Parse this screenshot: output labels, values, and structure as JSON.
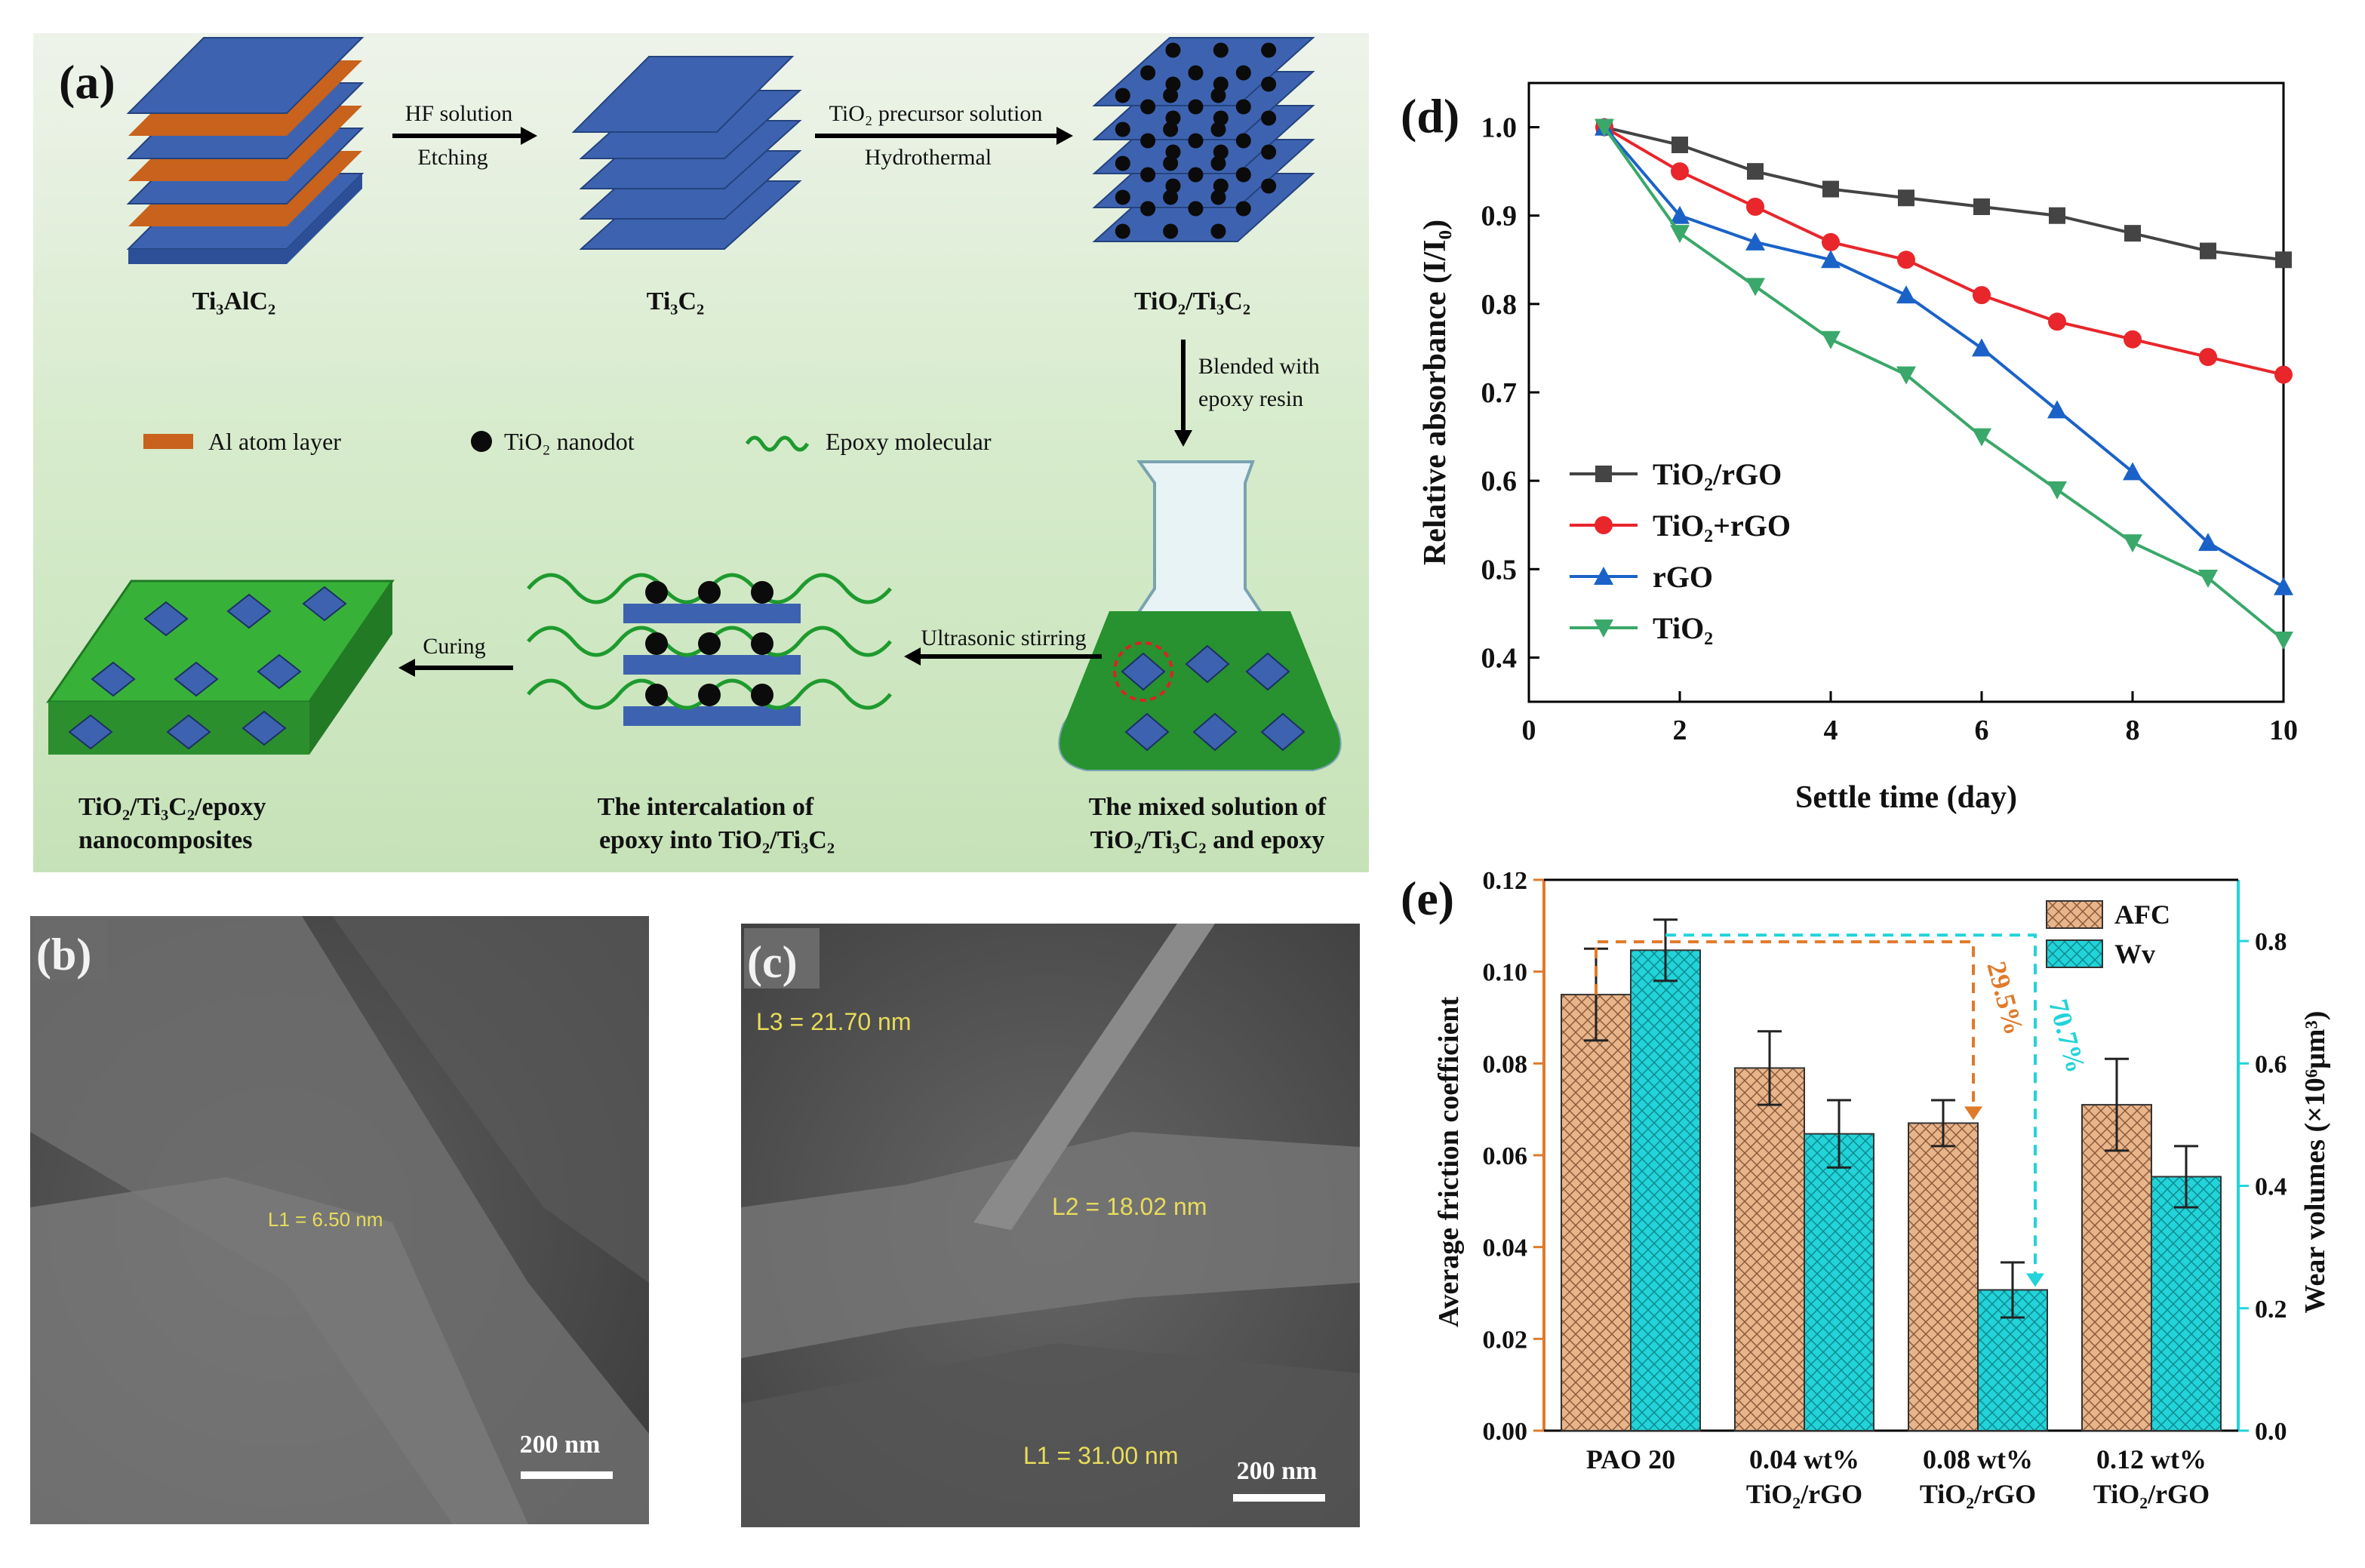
{
  "panel_a": {
    "label": "(a)",
    "materials": {
      "ti3alc2": "Ti₃AlC₂",
      "ti3c2": "Ti₃C₂",
      "tio2_ti3c2": "TiO₂/Ti₃C₂"
    },
    "steps": {
      "hf_top": "HF solution",
      "hf_bottom": "Etching",
      "hydro_top": "TiO₂ precursor solution",
      "hydro_bottom": "Hydrothermal",
      "blend_1": "Blended with",
      "blend_2": "epoxy resin",
      "ultrasonic": "Ultrasonic stirring",
      "curing": "Curing"
    },
    "legend": {
      "al": "Al atom layer",
      "tio2": "TiO₂ nanodot",
      "epoxy": "Epoxy molecular"
    },
    "captions": {
      "composite_1": "TiO₂/Ti₃C₂/epoxy",
      "composite_2": "nanocomposites",
      "intercal_1": "The intercalation of",
      "intercal_2": "epoxy into TiO₂/Ti₃C₂",
      "mixed_1": "The mixed solution of",
      "mixed_2": "TiO₂/Ti₃C₂ and epoxy"
    },
    "colors": {
      "layer_blue": "#3d63b0",
      "al_orange": "#c8621c",
      "dot": "#0b0b0b",
      "epoxy_green": "#1e9a2e",
      "bg_top": "#e4ede0",
      "bg_bottom": "#cfe6c4"
    }
  },
  "panel_b": {
    "label": "(b)",
    "measure": "L1 = 6.50 nm",
    "scale": "200 nm"
  },
  "panel_c": {
    "label": "(c)",
    "measures": [
      "L3 = 21.70 nm",
      "L2 = 18.02 nm",
      "L1 = 31.00 nm"
    ],
    "scale": "200 nm"
  },
  "chart_data": [
    {
      "panel": "(d)",
      "type": "line",
      "xlabel": "Settle time (day)",
      "ylabel": "Relative absorbance (I/I₀)",
      "xlim": [
        0,
        10
      ],
      "ylim": [
        0.35,
        1.05
      ],
      "xticks": [
        "0",
        "2",
        "4",
        "6",
        "8",
        "10"
      ],
      "yticks": [
        "0.4",
        "0.5",
        "0.6",
        "0.7",
        "0.8",
        "0.9",
        "1.0"
      ],
      "x": [
        1,
        2,
        3,
        4,
        5,
        6,
        7,
        8,
        9,
        10
      ],
      "legend_position": "lower-left",
      "series": [
        {
          "name": "TiO₂/rGO",
          "color": "#444444",
          "marker": "square",
          "values": [
            1.0,
            0.98,
            0.95,
            0.93,
            0.92,
            0.91,
            0.9,
            0.88,
            0.86,
            0.85
          ]
        },
        {
          "name": "TiO₂+rGO",
          "color": "#e8262b",
          "marker": "circle",
          "values": [
            1.0,
            0.95,
            0.91,
            0.87,
            0.85,
            0.81,
            0.78,
            0.76,
            0.74,
            0.72
          ]
        },
        {
          "name": "rGO",
          "color": "#1a62c8",
          "marker": "triangle-up",
          "values": [
            1.0,
            0.9,
            0.87,
            0.85,
            0.81,
            0.75,
            0.68,
            0.61,
            0.53,
            0.48
          ]
        },
        {
          "name": "TiO₂",
          "color": "#3aa86a",
          "marker": "triangle-down",
          "values": [
            1.0,
            0.88,
            0.82,
            0.76,
            0.72,
            0.65,
            0.59,
            0.53,
            0.49,
            0.42
          ]
        }
      ]
    },
    {
      "panel": "(e)",
      "type": "bar",
      "categories": [
        "PAO 20",
        "0.04 wt% TiO₂/rGO",
        "0.08 wt% TiO₂/rGO",
        "0.12 wt% TiO₂/rGO"
      ],
      "category_lines": [
        [
          "PAO 20"
        ],
        [
          "0.04 wt%",
          "TiO₂/rGO"
        ],
        [
          "0.08 wt%",
          "TiO₂/rGO"
        ],
        [
          "0.12 wt%",
          "TiO₂/rGO"
        ]
      ],
      "ylabel": "Average friction coefficient",
      "ylabel_right": "Wear volumes (×10⁶μm³)",
      "ylim": [
        0,
        0.12
      ],
      "ylim_right": [
        0,
        0.9
      ],
      "yticks": [
        "0.00",
        "0.02",
        "0.04",
        "0.06",
        "0.08",
        "0.10",
        "0.12"
      ],
      "yticks_right": [
        "0.0",
        "0.2",
        "0.4",
        "0.6",
        "0.8"
      ],
      "legend_position": "top-right",
      "series": [
        {
          "name": "AFC",
          "axis": "left",
          "color": "#e8b48a",
          "values": [
            0.095,
            0.079,
            0.067,
            0.071
          ],
          "errors": [
            0.01,
            0.008,
            0.005,
            0.01
          ]
        },
        {
          "name": "Wv",
          "axis": "right",
          "color": "#22d3d9",
          "values": [
            0.785,
            0.485,
            0.23,
            0.415
          ],
          "errors": [
            0.05,
            0.055,
            0.045,
            0.05
          ]
        }
      ],
      "annotations": [
        {
          "text": "29.5%",
          "color": "#e07a2a"
        },
        {
          "text": "70.7%",
          "color": "#22d3d9"
        }
      ]
    }
  ]
}
